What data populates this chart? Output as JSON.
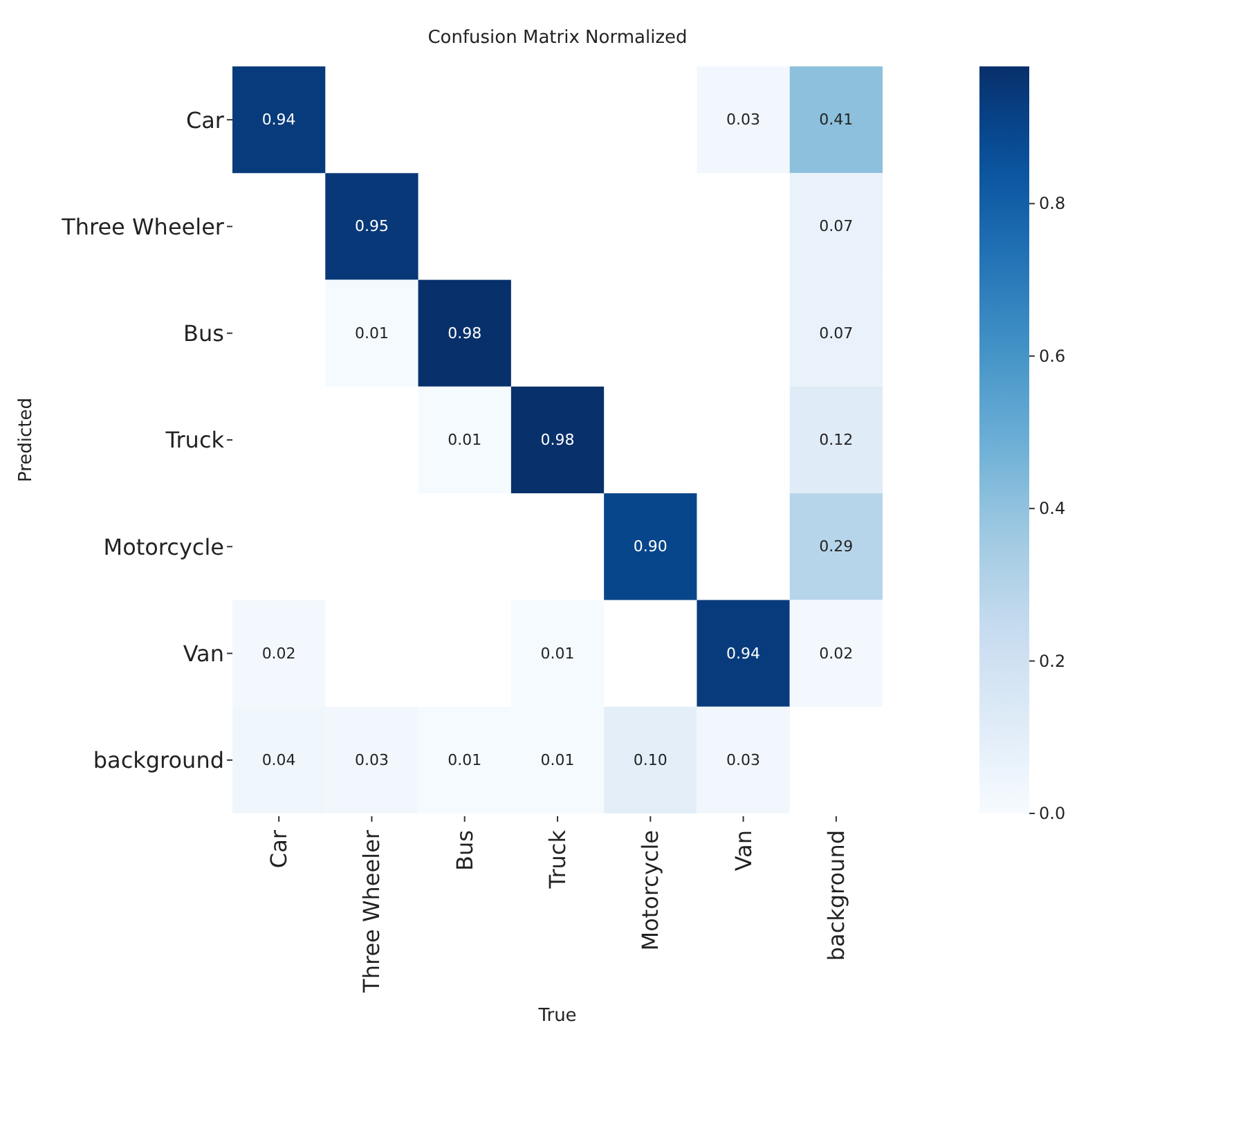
{
  "chart_data": {
    "type": "heatmap",
    "title": "Confusion Matrix Normalized",
    "xlabel": "True",
    "ylabel": "Predicted",
    "categories": [
      "Car",
      "Three Wheeler",
      "Bus",
      "Truck",
      "Motorcycle",
      "Van",
      "background"
    ],
    "y_categories": [
      "Car",
      "Three Wheeler",
      "Bus",
      "Truck",
      "Motorcycle",
      "Van",
      "background"
    ],
    "cells": [
      [
        0.94,
        null,
        null,
        null,
        null,
        0.03,
        0.41
      ],
      [
        null,
        0.95,
        null,
        null,
        null,
        null,
        0.07
      ],
      [
        null,
        0.01,
        0.98,
        null,
        null,
        null,
        0.07
      ],
      [
        null,
        null,
        0.01,
        0.98,
        null,
        null,
        0.12
      ],
      [
        null,
        null,
        null,
        null,
        0.9,
        null,
        0.29
      ],
      [
        0.02,
        null,
        null,
        0.01,
        null,
        0.94,
        0.02
      ],
      [
        0.04,
        0.03,
        0.01,
        0.01,
        0.1,
        0.03,
        null
      ]
    ],
    "cell_labels": [
      [
        "0.94",
        null,
        null,
        null,
        null,
        "0.03",
        "0.41"
      ],
      [
        null,
        "0.95",
        null,
        null,
        null,
        null,
        "0.07"
      ],
      [
        null,
        "0.01",
        "0.98",
        null,
        null,
        null,
        "0.07"
      ],
      [
        null,
        null,
        "0.01",
        "0.98",
        null,
        null,
        "0.12"
      ],
      [
        null,
        null,
        null,
        null,
        "0.90",
        null,
        "0.29"
      ],
      [
        "0.02",
        null,
        null,
        "0.01",
        null,
        "0.94",
        "0.02"
      ],
      [
        "0.04",
        "0.03",
        "0.01",
        "0.01",
        "0.10",
        "0.03",
        null
      ]
    ],
    "clim": [
      0,
      0.98
    ],
    "cticks": [
      {
        "value": 0,
        "label": "0.0"
      },
      {
        "value": 0.2,
        "label": "0.2"
      },
      {
        "value": 0.4,
        "label": "0.4"
      },
      {
        "value": 0.6,
        "label": "0.6"
      },
      {
        "value": 0.8,
        "label": "0.8"
      }
    ]
  }
}
